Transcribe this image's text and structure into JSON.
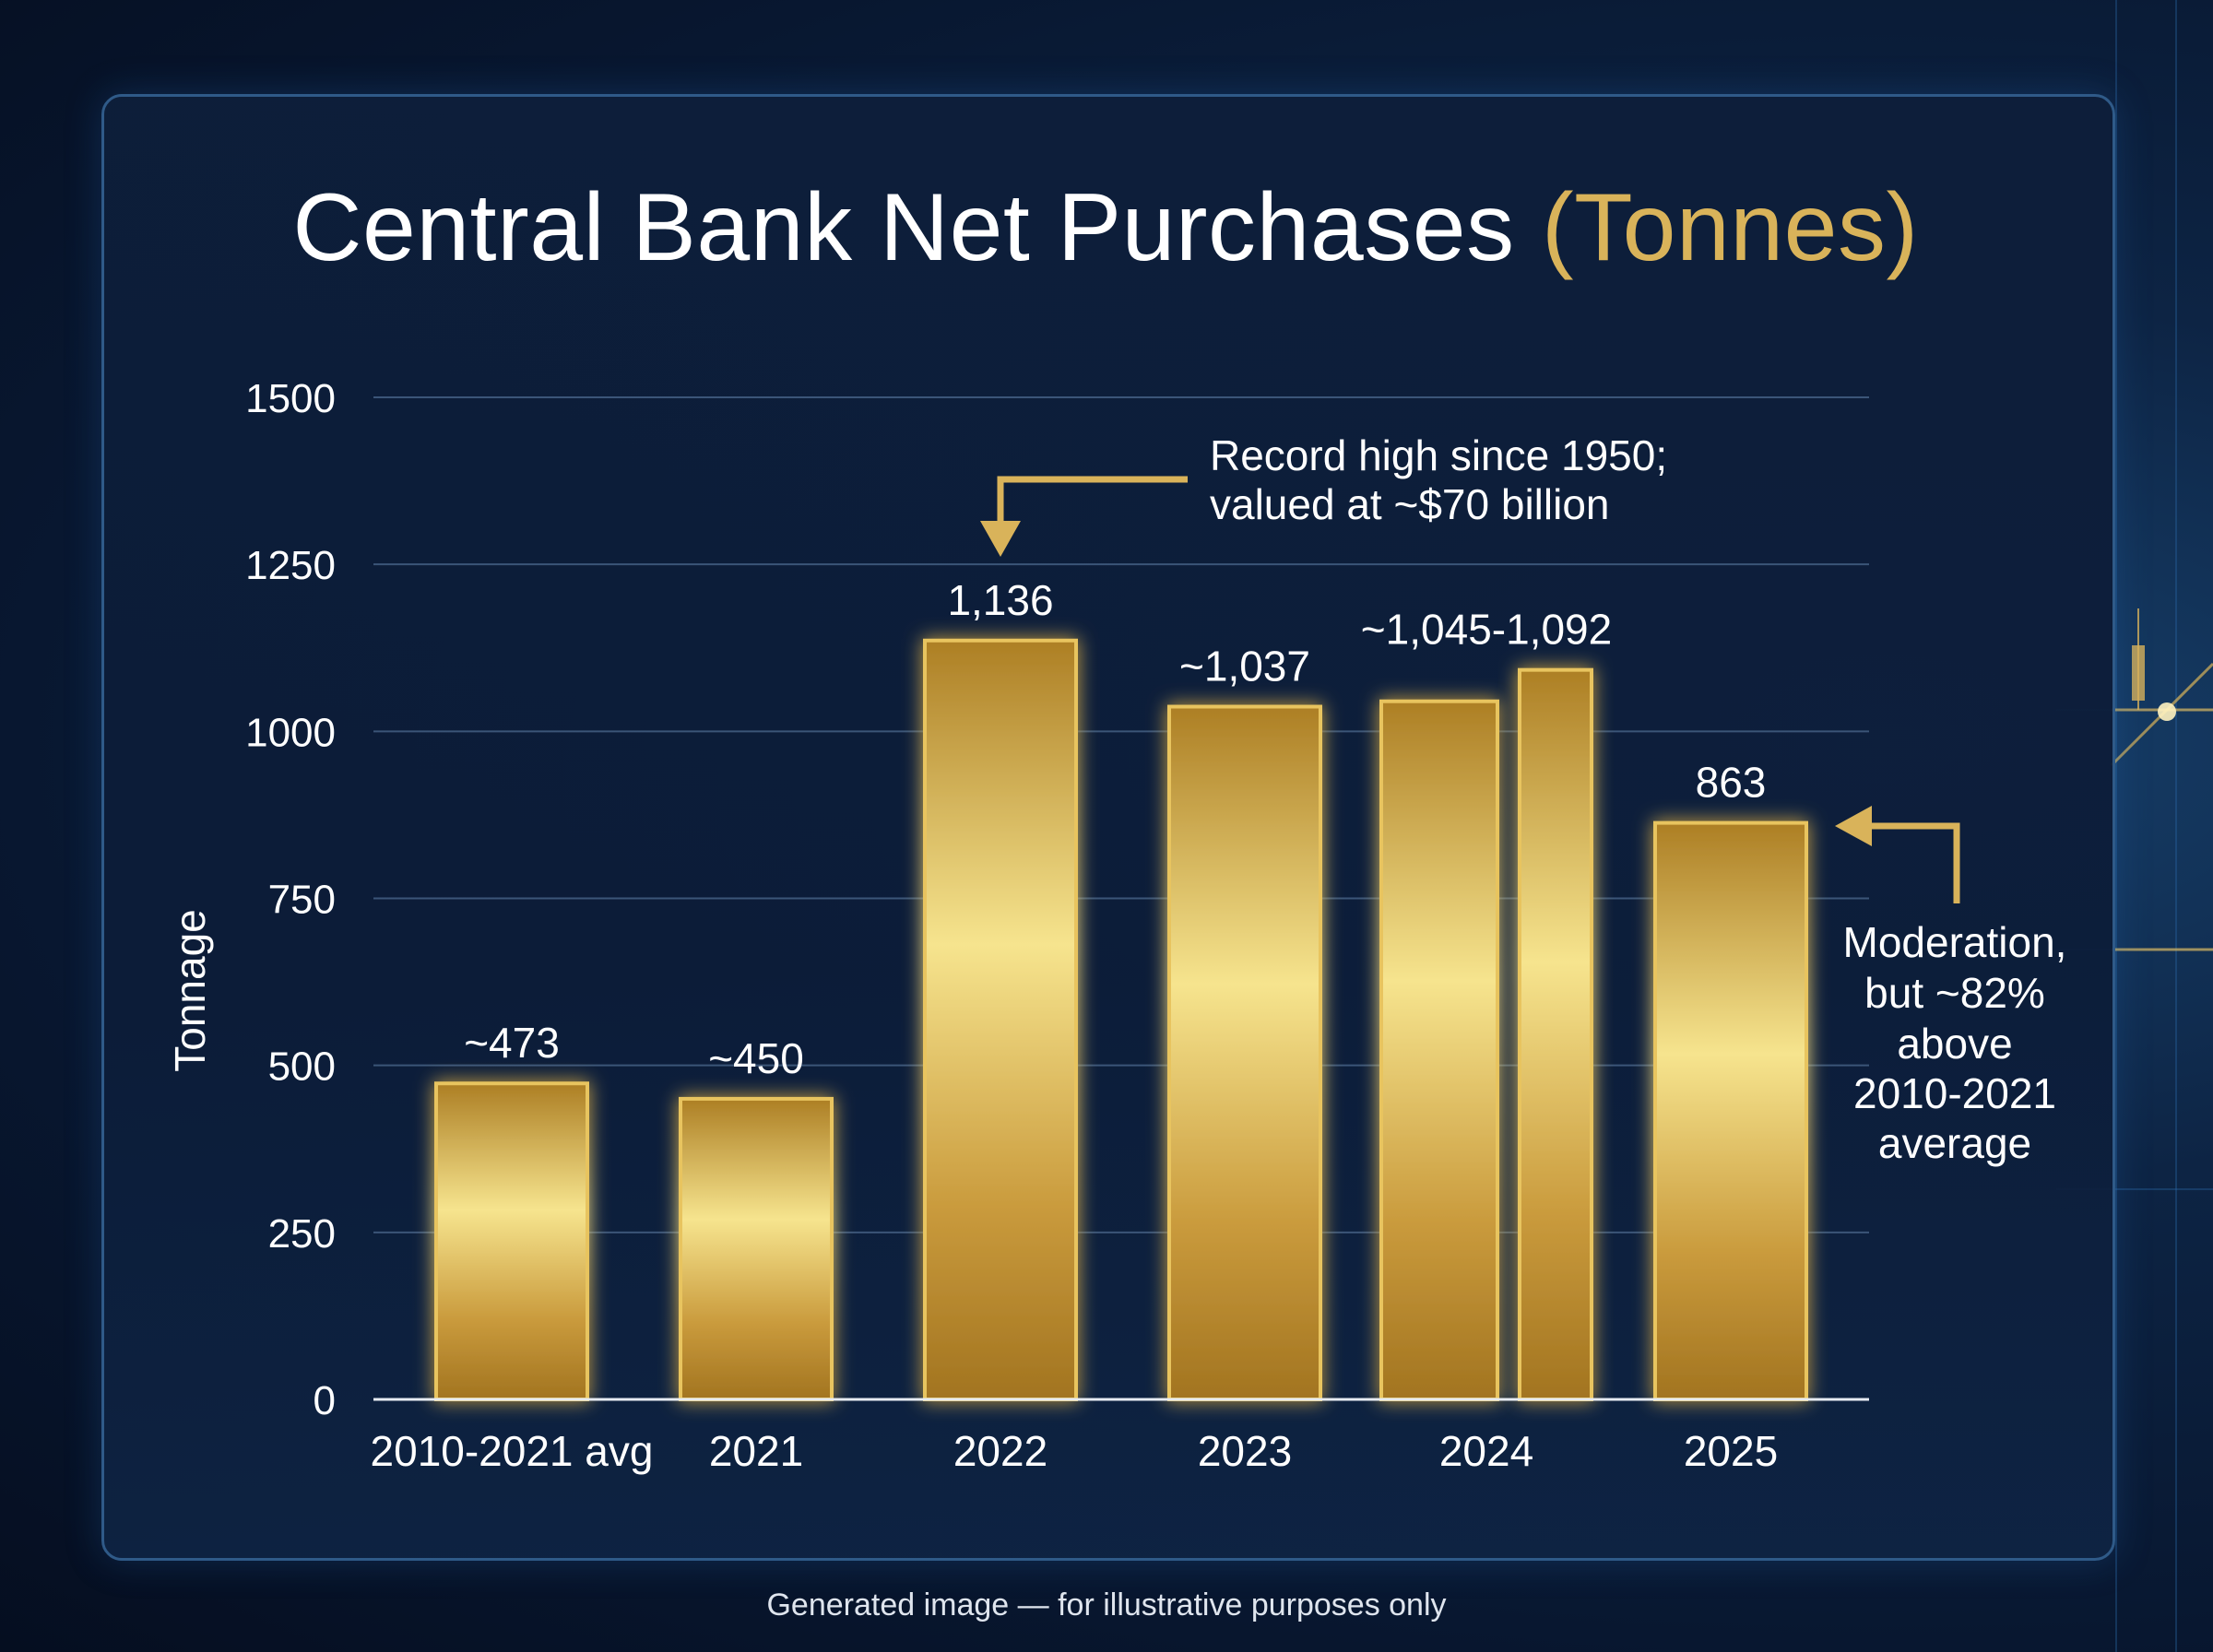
{
  "title": {
    "main": "Central Bank Net Purchases",
    "accent": "(Tonnes)"
  },
  "footnote": "Generated image — for illustrative purposes only",
  "colors": {
    "gold_light": "#f6e48e",
    "gold_dark": "#a87a22",
    "gold_edge": "#e8c45e",
    "accent_text": "#d9b35a",
    "grid": "#3b5578",
    "background": "#0b1c38"
  },
  "chart_data": {
    "type": "bar",
    "categories": [
      "2010-2021 avg",
      "2021",
      "2022",
      "2023",
      "2024",
      "2025"
    ],
    "values": [
      473,
      450,
      1136,
      1037,
      [
        1045,
        1092
      ],
      863
    ],
    "data_labels": [
      "~473",
      "~450",
      "1,136",
      "~1,037",
      "~1,045-1,092",
      "863"
    ],
    "ylabel": "Tonnage",
    "ylim": [
      0,
      1500
    ],
    "yticks": [
      0,
      250,
      500,
      750,
      1000,
      1250,
      1500
    ],
    "grid": true,
    "annotations": [
      {
        "target": "2022",
        "lines": [
          "Record high since 1950;",
          "valued at ~$70 billion"
        ]
      },
      {
        "target": "2025",
        "lines": [
          "Moderation,",
          "but ~82%",
          "above",
          "2010-2021",
          "average"
        ]
      }
    ]
  }
}
